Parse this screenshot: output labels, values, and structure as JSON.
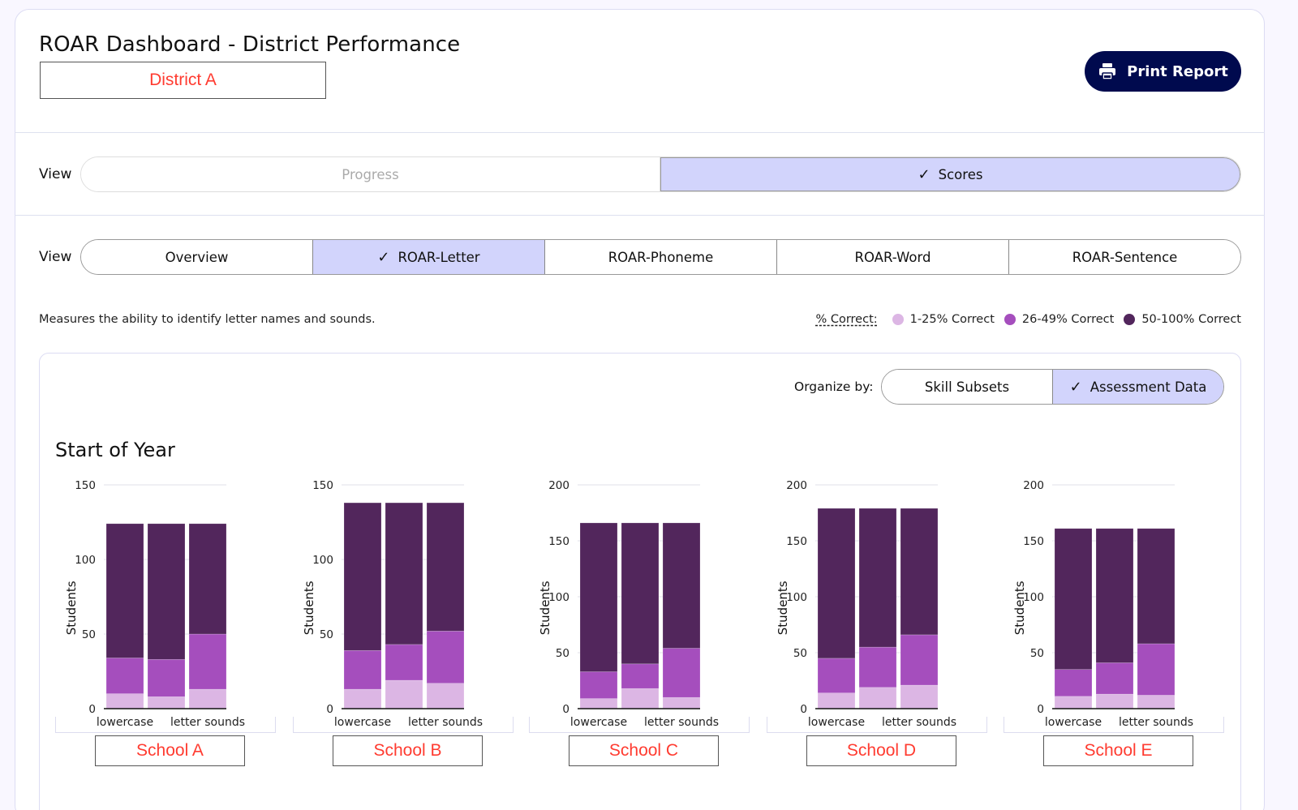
{
  "header": {
    "title": "ROAR Dashboard - District Performance",
    "district": "District A",
    "print_label": "Print Report"
  },
  "view_toggle": {
    "label": "View",
    "options": [
      {
        "label": "Progress",
        "active": false
      },
      {
        "label": "Scores",
        "active": true
      }
    ]
  },
  "task_tabs": {
    "label": "View",
    "options": [
      {
        "label": "Overview",
        "active": false
      },
      {
        "label": "ROAR-Letter",
        "active": true
      },
      {
        "label": "ROAR-Phoneme",
        "active": false
      },
      {
        "label": "ROAR-Word",
        "active": false
      },
      {
        "label": "ROAR-Sentence",
        "active": false
      }
    ]
  },
  "description": "Measures the ability to identify letter names and sounds.",
  "legend": {
    "label": "% Correct:",
    "items": [
      {
        "label": "1-25% Correct",
        "color": "#dcb6e4"
      },
      {
        "label": "26-49% Correct",
        "color": "#a54ebd"
      },
      {
        "label": "50-100% Correct",
        "color": "#52265c"
      }
    ]
  },
  "organize": {
    "label": "Organize by:",
    "options": [
      {
        "label": "Skill Subsets",
        "active": false
      },
      {
        "label": "Assessment Data",
        "active": true
      }
    ]
  },
  "section_title": "Start of Year",
  "chart_data": [
    {
      "type": "bar",
      "stacked": true,
      "title": "School A",
      "ylabel": "Students",
      "ylim": [
        0,
        150
      ],
      "yticks": [
        0,
        50,
        100,
        150
      ],
      "categories": [
        "lowercase",
        "",
        "letter sounds"
      ],
      "series": [
        {
          "name": "1-25% Correct",
          "values": [
            10,
            8,
            13
          ]
        },
        {
          "name": "26-49% Correct",
          "values": [
            24,
            25,
            37
          ]
        },
        {
          "name": "50-100% Correct",
          "values": [
            90,
            91,
            74
          ]
        }
      ]
    },
    {
      "type": "bar",
      "stacked": true,
      "title": "School B",
      "ylabel": "Students",
      "ylim": [
        0,
        150
      ],
      "yticks": [
        0,
        50,
        100,
        150
      ],
      "categories": [
        "lowercase",
        "",
        "letter sounds"
      ],
      "series": [
        {
          "name": "1-25% Correct",
          "values": [
            13,
            19,
            17
          ]
        },
        {
          "name": "26-49% Correct",
          "values": [
            26,
            24,
            35
          ]
        },
        {
          "name": "50-100% Correct",
          "values": [
            99,
            95,
            86
          ]
        }
      ]
    },
    {
      "type": "bar",
      "stacked": true,
      "title": "School C",
      "ylabel": "Students",
      "ylim": [
        0,
        200
      ],
      "yticks": [
        0,
        50,
        100,
        150,
        200
      ],
      "categories": [
        "lowercase",
        "",
        "letter sounds"
      ],
      "series": [
        {
          "name": "1-25% Correct",
          "values": [
            9,
            18,
            10
          ]
        },
        {
          "name": "26-49% Correct",
          "values": [
            24,
            22,
            44
          ]
        },
        {
          "name": "50-100% Correct",
          "values": [
            133,
            126,
            112
          ]
        }
      ]
    },
    {
      "type": "bar",
      "stacked": true,
      "title": "School D",
      "ylabel": "Students",
      "ylim": [
        0,
        200
      ],
      "yticks": [
        0,
        50,
        100,
        150,
        200
      ],
      "categories": [
        "lowercase",
        "",
        "letter sounds"
      ],
      "series": [
        {
          "name": "1-25% Correct",
          "values": [
            14,
            19,
            21
          ]
        },
        {
          "name": "26-49% Correct",
          "values": [
            31,
            36,
            45
          ]
        },
        {
          "name": "50-100% Correct",
          "values": [
            134,
            124,
            113
          ]
        }
      ]
    },
    {
      "type": "bar",
      "stacked": true,
      "title": "School E",
      "ylabel": "Students",
      "ylim": [
        0,
        200
      ],
      "yticks": [
        0,
        50,
        100,
        150,
        200
      ],
      "categories": [
        "lowercase",
        "",
        "letter sounds"
      ],
      "series": [
        {
          "name": "1-25% Correct",
          "values": [
            11,
            13,
            12
          ]
        },
        {
          "name": "26-49% Correct",
          "values": [
            24,
            28,
            46
          ]
        },
        {
          "name": "50-100% Correct",
          "values": [
            126,
            120,
            103
          ]
        }
      ]
    }
  ]
}
